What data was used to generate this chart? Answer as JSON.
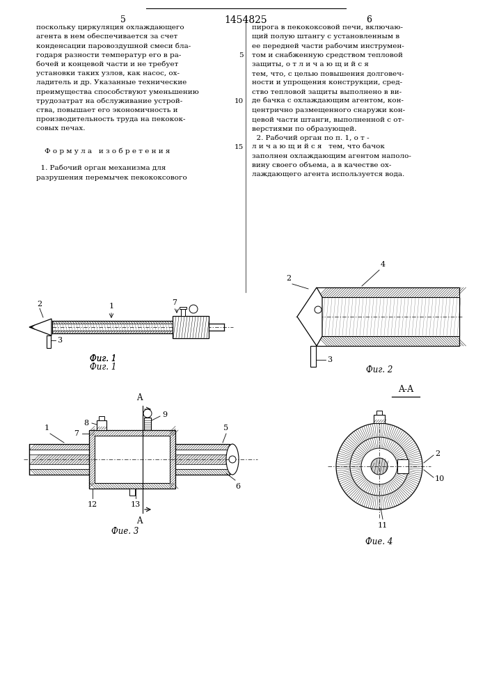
{
  "bg_color": "#ffffff",
  "page_number_left": "5",
  "page_number_center": "1454825",
  "page_number_right": "6"
}
